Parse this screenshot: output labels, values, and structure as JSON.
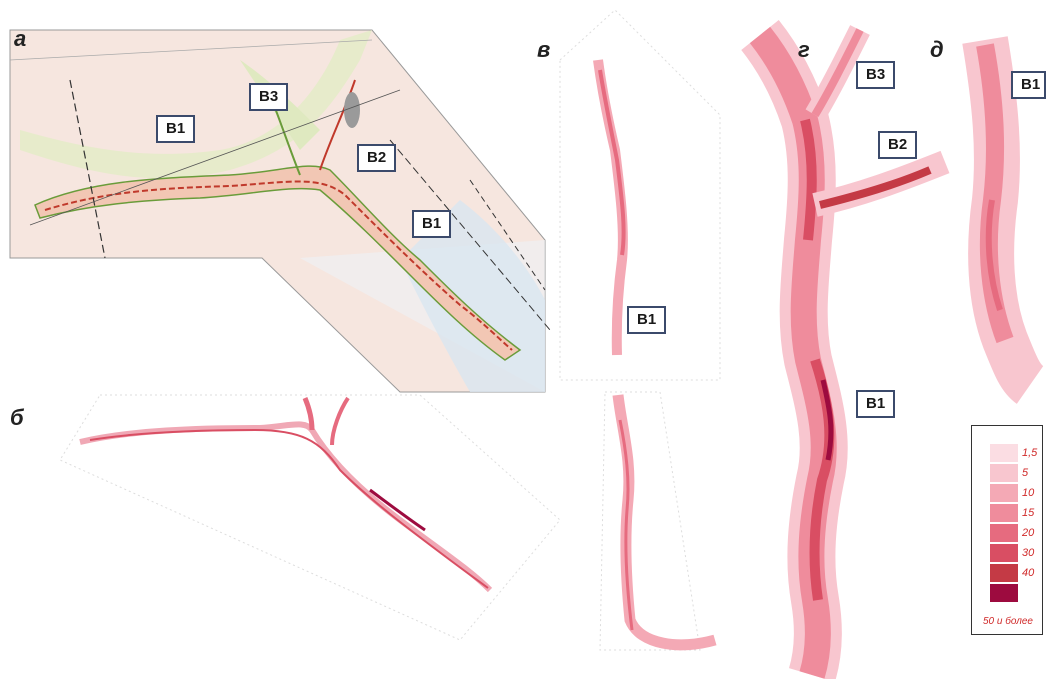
{
  "panels": {
    "a": {
      "letter": "а",
      "labels": [
        "В1",
        "В3",
        "В2",
        "В1"
      ]
    },
    "b": {
      "letter": "б"
    },
    "v": {
      "letter": "в",
      "labels": [
        "В1"
      ]
    },
    "g": {
      "letter": "г",
      "labels": [
        "В3",
        "В2",
        "В1"
      ]
    },
    "d": {
      "letter": "д",
      "labels": [
        "В1"
      ]
    }
  },
  "legend": {
    "values": [
      "1,5",
      "5",
      "10",
      "15",
      "20",
      "30",
      "40"
    ],
    "last": "50 и более",
    "colors": [
      "#fbdde3",
      "#f8c6cf",
      "#f4a9b5",
      "#ef8c9c",
      "#e66b7f",
      "#d94e63",
      "#c43a45",
      "#9d0b3f"
    ]
  }
}
